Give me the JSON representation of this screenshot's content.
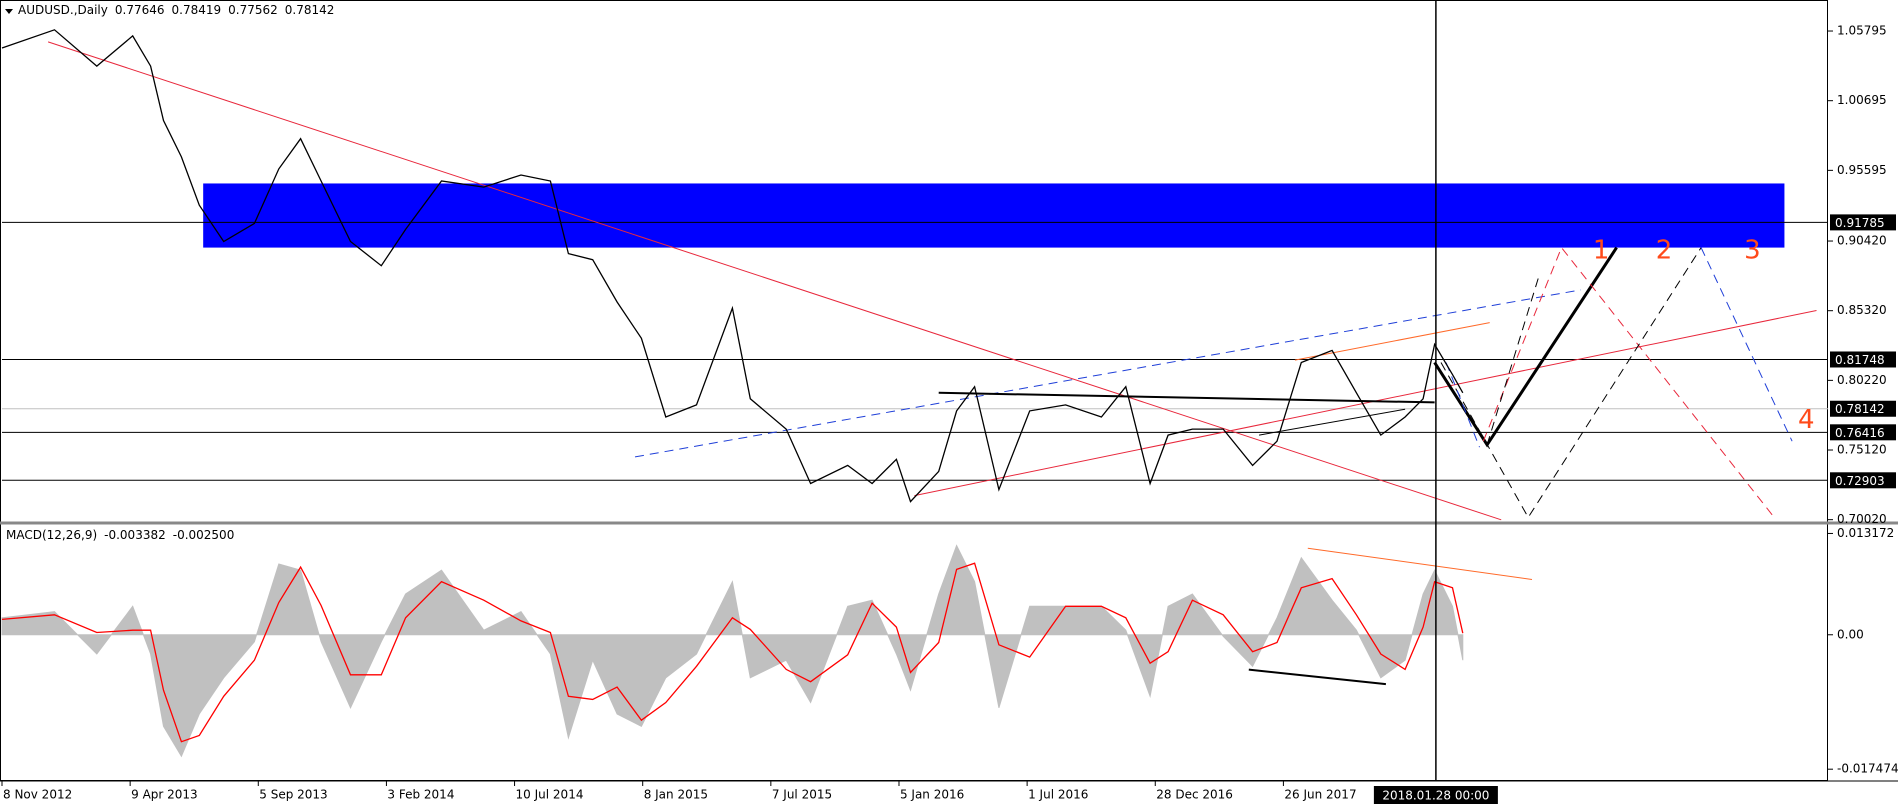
{
  "chart_data": [
    {
      "type": "line",
      "symbol": "AUDUSD.,Daily",
      "ohlc": [
        "0.77646",
        "0.78419",
        "0.77562",
        "0.78142"
      ],
      "x": [
        0,
        0.41,
        0.74,
        1.02,
        1.16,
        1.26,
        1.4,
        1.54,
        1.73,
        1.97,
        2.16,
        2.33,
        2.49,
        2.72,
        2.96,
        3.15,
        3.43,
        3.76,
        4.05,
        4.28,
        4.42,
        4.61,
        4.8,
        4.99,
        5.18,
        5.42,
        5.7,
        5.84,
        6.12,
        6.31,
        6.6,
        6.79,
        6.98,
        7.09,
        7.31,
        7.45,
        7.59,
        7.78,
        8.02,
        8.3,
        8.58,
        8.77,
        8.96,
        9.1,
        9.29,
        9.53,
        9.76,
        9.95,
        10.14,
        10.38,
        10.57,
        10.76,
        10.95,
        11.09,
        11.18,
        11.32,
        11.4
      ],
      "values": [
        1.04555,
        1.05884,
        1.03226,
        1.05441,
        1.03226,
        0.99241,
        0.96583,
        0.9304,
        0.90383,
        0.91712,
        0.95698,
        0.97912,
        0.94812,
        0.90383,
        0.88612,
        0.91269,
        0.94812,
        0.94369,
        0.95255,
        0.94812,
        0.89497,
        0.89055,
        0.85954,
        0.83297,
        0.7754,
        0.78426,
        0.85511,
        0.78869,
        0.76654,
        0.72668,
        0.73997,
        0.72668,
        0.7444,
        0.7134,
        0.73554,
        0.77983,
        0.79754,
        0.72225,
        0.77983,
        0.78426,
        0.7754,
        0.79754,
        0.72668,
        0.76211,
        0.76654,
        0.76654,
        0.73997,
        0.75768,
        0.81526,
        0.82411,
        0.79311,
        0.76211,
        0.7754,
        0.78869,
        0.82854,
        0.8064,
        0.79311
      ],
      "color": "#000000",
      "xlim": [
        0,
        14.25
      ],
      "xticks": [
        {
          "value": 0,
          "label": "8 Nov 2012"
        },
        {
          "value": 1,
          "label": "9 Apr 2013"
        },
        {
          "value": 2,
          "label": "5 Sep 2013"
        },
        {
          "value": 3,
          "label": "3 Feb 2014"
        },
        {
          "value": 4,
          "label": "10 Jul 2014"
        },
        {
          "value": 5,
          "label": "8 Jan 2015"
        },
        {
          "value": 6,
          "label": "7 Jul 2015"
        },
        {
          "value": 7,
          "label": "5 Jan 2016"
        },
        {
          "value": 8,
          "label": "1 Jul 2016"
        },
        {
          "value": 9,
          "label": "28 Dec 2016"
        },
        {
          "value": 10,
          "label": "26 Jun 2017"
        }
      ],
      "ylim": [
        0.6985,
        1.0792
      ],
      "yticks": [
        1.05795,
        1.00695,
        0.95595,
        {
          "value": 0.9042,
          "label": "0.90420"
        },
        {
          "value": 0.8532,
          "label": "0.85320"
        },
        {
          "value": 0.8022,
          "label": "0.80220"
        },
        {
          "value": 0.7512,
          "label": "0.75120"
        },
        {
          "value": 0.7002,
          "label": "0.70020"
        }
      ],
      "hlines": [
        0.91785,
        0.81748,
        0.76416,
        0.72903
      ],
      "hline_color": "#000000",
      "current_price": 0.78142,
      "current_color": "#c0c0c0",
      "zones": [
        {
          "x": [
            1.57,
            13.91
          ],
          "y": [
            0.8994,
            0.94635
          ],
          "color": "#0000ff"
        }
      ],
      "drawings": [
        {
          "color": "#e8283c",
          "dash": false,
          "width": 1,
          "x": [
            0.36,
            11.7
          ],
          "y": [
            1.04998,
            0.70011
          ]
        },
        {
          "color": "#e8283c",
          "dash": false,
          "width": 1,
          "x": [
            7.12,
            14.16
          ],
          "y": [
            0.71783,
            0.85334
          ]
        },
        {
          "color": "#1f3fd8",
          "dash": true,
          "width": 1,
          "x": [
            4.94,
            12.32
          ],
          "y": [
            0.74617,
            0.8684
          ]
        },
        {
          "color": "#000000",
          "dash": false,
          "width": 2,
          "x": [
            7.31,
            11.18
          ],
          "y": [
            0.79311,
            0.78603
          ]
        },
        {
          "color": "#000000",
          "dash": false,
          "width": 1,
          "x": [
            9.81,
            10.95
          ],
          "y": [
            0.76211,
            0.78109
          ]
        },
        {
          "color": "#ff6a2a",
          "dash": false,
          "width": 1,
          "x": [
            10.09,
            11.61
          ],
          "y": [
            0.81703,
            0.84449
          ]
        },
        {
          "color": "#000000",
          "dash": false,
          "width": 3,
          "x": [
            11.18,
            11.59,
            12.6
          ],
          "y": [
            0.81526,
            0.75502,
            0.8994
          ]
        },
        {
          "color": "#e8283c",
          "dash": true,
          "width": 1,
          "x": [
            11.56,
            12.17,
            13.83
          ],
          "y": [
            0.75768,
            0.8994,
            0.70189
          ]
        },
        {
          "color": "#000000",
          "dash": true,
          "width": 1,
          "x": [
            11.23,
            11.91,
            13.26
          ],
          "y": [
            0.81526,
            0.70189,
            0.8994
          ]
        },
        {
          "color": "#000000",
          "dash": true,
          "width": 1,
          "x": [
            11.59,
            11.99
          ],
          "y": [
            0.75502,
            0.87726
          ]
        },
        {
          "color": "#1f3fd8",
          "dash": true,
          "width": 1,
          "x": [
            13.26,
            13.97
          ],
          "y": [
            0.8994,
            0.75768
          ]
        },
        {
          "color": "#1f3fd8",
          "dash": true,
          "width": 1,
          "x": [
            11.27,
            11.53
          ],
          "y": [
            0.81526,
            0.75325
          ]
        }
      ],
      "annotations": [
        {
          "text": "1",
          "x": 12.48,
          "y": 0.89675,
          "color": "#ff4a1a"
        },
        {
          "text": "2",
          "x": 12.97,
          "y": 0.89675,
          "color": "#ff4a1a"
        },
        {
          "text": "3",
          "x": 13.66,
          "y": 0.89675,
          "color": "#ff4a1a"
        },
        {
          "text": "4",
          "x": 14.08,
          "y": 0.77274,
          "color": "#ff4a1a"
        }
      ],
      "cursor": {
        "x": 11.19,
        "label": "2018.01.28 00:00"
      }
    },
    {
      "type": "macd",
      "title": "MACD(12,26,9)",
      "readout": [
        "-0.003382",
        "-0.002500"
      ],
      "x": [
        0,
        0.41,
        0.74,
        1.02,
        1.16,
        1.26,
        1.4,
        1.54,
        1.73,
        1.97,
        2.16,
        2.33,
        2.49,
        2.72,
        2.96,
        3.15,
        3.43,
        3.76,
        4.05,
        4.28,
        4.42,
        4.61,
        4.8,
        4.99,
        5.18,
        5.42,
        5.7,
        5.84,
        6.12,
        6.31,
        6.6,
        6.79,
        6.98,
        7.09,
        7.31,
        7.45,
        7.59,
        7.78,
        8.02,
        8.3,
        8.58,
        8.77,
        8.96,
        9.1,
        9.29,
        9.53,
        9.76,
        9.95,
        10.14,
        10.38,
        10.57,
        10.76,
        10.95,
        11.09,
        11.18,
        11.32,
        11.4
      ],
      "series": [
        {
          "style": "area",
          "color": "#c0c0c0",
          "values": [
            0.0022,
            0.003,
            -0.0025,
            0.0037,
            -0.0025,
            -0.0119,
            -0.0158,
            -0.0103,
            -0.0056,
            -0.0009,
            0.0092,
            0.0084,
            -0.0009,
            -0.0095,
            -0.0009,
            0.0053,
            0.0084,
            0.0006,
            0.003,
            -0.0025,
            -0.0134,
            -0.0033,
            -0.0103,
            -0.0119,
            -0.0056,
            -0.0025,
            0.0069,
            -0.0056,
            -0.0033,
            -0.0088,
            0.0037,
            0.0045,
            -0.0025,
            -0.0072,
            0.0053,
            0.0116,
            0.0069,
            -0.0095,
            0.0037,
            0.0037,
            0.0037,
            0.0006,
            -0.008,
            0.0037,
            0.0053,
            -0.0002,
            -0.0041,
            0.0022,
            0.01,
            0.0045,
            0.0006,
            -0.0056,
            -0.0033,
            0.0053,
            0.0084,
            0.0037,
            -0.0033
          ]
        },
        {
          "style": "line",
          "color": "#ff0000",
          "values": [
            0.002,
            0.0026,
            0.0003,
            0.0006,
            0.0006,
            -0.0072,
            -0.0139,
            -0.0131,
            -0.008,
            -0.0033,
            0.0042,
            0.0088,
            0.0038,
            -0.0052,
            -0.0052,
            0.0022,
            0.0069,
            0.0045,
            0.0018,
            0.0003,
            -0.008,
            -0.0084,
            -0.0068,
            -0.0111,
            -0.0088,
            -0.0041,
            0.0022,
            0.0007,
            -0.0045,
            -0.0061,
            -0.0026,
            0.0041,
            0.001,
            -0.0049,
            -0.001,
            0.0085,
            0.0093,
            -0.0013,
            -0.0029,
            0.0037,
            0.0037,
            0.0022,
            -0.0037,
            -0.0022,
            0.0045,
            0.0026,
            -0.0022,
            -0.001,
            0.0061,
            0.0073,
            0.0026,
            -0.0025,
            -0.0045,
            0.001,
            0.0069,
            0.0061,
            0.0002
          ]
        }
      ],
      "xlim": [
        0,
        14.25
      ],
      "ylim": [
        -0.01888,
        0.01427
      ],
      "yticks": [
        0.013172,
        {
          "value": 0,
          "label": "0.00"
        },
        -0.017474
      ],
      "drawings": [
        {
          "color": "#ff6a2a",
          "dash": false,
          "width": 1,
          "x": [
            10.19,
            11.94
          ],
          "y": [
            0.01126,
            0.00719
          ]
        },
        {
          "color": "#000000",
          "dash": false,
          "width": 2,
          "x": [
            9.73,
            10.8
          ],
          "y": [
            -0.00453,
            -0.00641
          ]
        }
      ]
    }
  ]
}
